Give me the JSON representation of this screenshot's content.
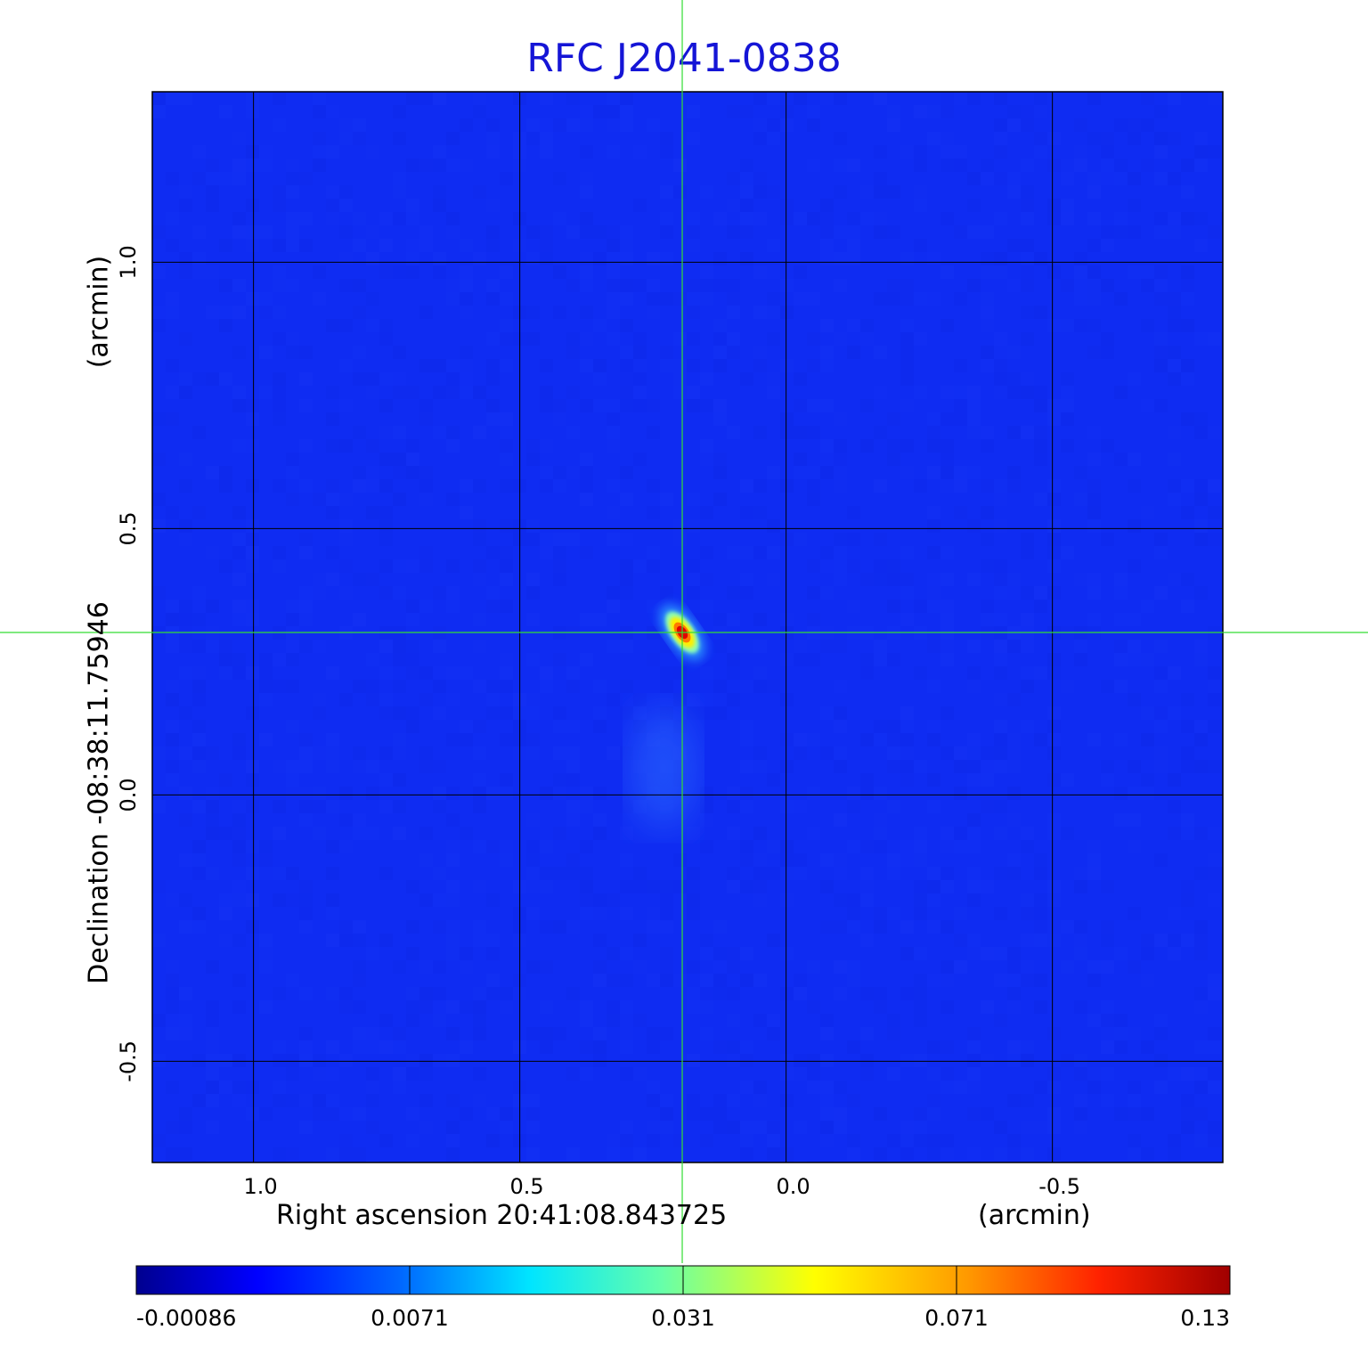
{
  "chart_data": {
    "type": "heatmap",
    "title": "RFC J2041-0838",
    "xlabel": "Right ascension  20:41:08.843725",
    "ylabel": "Declination  -08:38:11.75946",
    "x_unit_label": "(arcmin)",
    "y_unit_label": "(arcmin)",
    "x_ticks": [
      1.0,
      0.5,
      0.0,
      -0.5
    ],
    "x_tick_labels": [
      "1.0",
      "0.5",
      "0.0",
      "-0.5"
    ],
    "y_ticks": [
      1.0,
      0.5,
      0.0,
      -0.5
    ],
    "y_tick_labels": [
      "1.0",
      "0.5",
      "0.0",
      "-0.5"
    ],
    "xlim": [
      1.19,
      -0.82
    ],
    "ylim": [
      -0.69,
      1.32
    ],
    "grid": true,
    "colormap": "jet",
    "colorbar": {
      "range": [
        -0.00086,
        0.13
      ],
      "tick_labels": [
        "-0.00086",
        "0.0071",
        "0.031",
        "0.071",
        "0.13"
      ]
    },
    "crosshair": {
      "ra_offset_arcmin": 0.195,
      "dec_offset_arcmin": 0.305,
      "color": "#33dd33"
    },
    "peak": {
      "ra_offset_arcmin": 0.195,
      "dec_offset_arcmin": 0.305,
      "value": 0.13
    },
    "secondary_emission": {
      "ra_offset_arcmin": 0.23,
      "dec_offset_arcmin": 0.05,
      "value": 0.009
    }
  }
}
